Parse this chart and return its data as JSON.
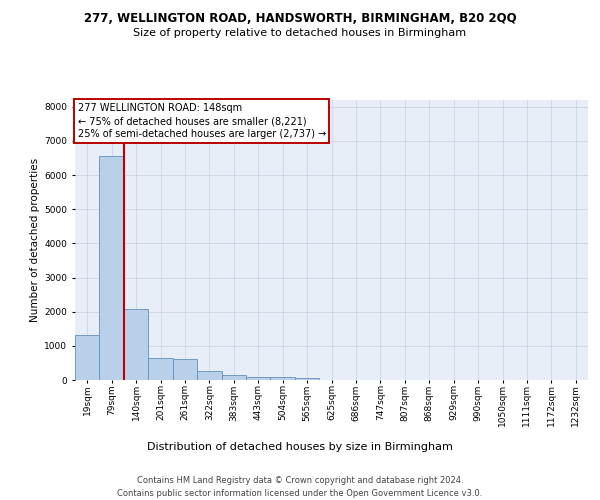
{
  "title": "277, WELLINGTON ROAD, HANDSWORTH, BIRMINGHAM, B20 2QQ",
  "subtitle": "Size of property relative to detached houses in Birmingham",
  "xlabel": "Distribution of detached houses by size in Birmingham",
  "ylabel": "Number of detached properties",
  "footer_line1": "Contains HM Land Registry data © Crown copyright and database right 2024.",
  "footer_line2": "Contains public sector information licensed under the Open Government Licence v3.0.",
  "bin_labels": [
    "19sqm",
    "79sqm",
    "140sqm",
    "201sqm",
    "261sqm",
    "322sqm",
    "383sqm",
    "443sqm",
    "504sqm",
    "565sqm",
    "625sqm",
    "686sqm",
    "747sqm",
    "807sqm",
    "868sqm",
    "929sqm",
    "990sqm",
    "1050sqm",
    "1111sqm",
    "1172sqm",
    "1232sqm"
  ],
  "bar_heights": [
    1310,
    6550,
    2080,
    650,
    620,
    265,
    150,
    100,
    80,
    70,
    0,
    0,
    0,
    0,
    0,
    0,
    0,
    0,
    0,
    0,
    0
  ],
  "bar_color": "#b8d0ea",
  "bar_edge_color": "#6090c0",
  "background_color": "#e8eef8",
  "grid_color": "#c8d0dc",
  "annotation_line1": "277 WELLINGTON ROAD: 148sqm",
  "annotation_line2": "← 75% of detached houses are smaller (8,221)",
  "annotation_line3": "25% of semi-detached houses are larger (2,737) →",
  "annotation_box_edgecolor": "#bb0000",
  "vline_color": "#bb0000",
  "vline_position": 1.5,
  "ylim": [
    0,
    8200
  ],
  "yticks": [
    0,
    1000,
    2000,
    3000,
    4000,
    5000,
    6000,
    7000,
    8000
  ],
  "title_fontsize": 8.5,
  "subtitle_fontsize": 8.0,
  "xlabel_fontsize": 8.0,
  "ylabel_fontsize": 7.5,
  "tick_fontsize": 6.5,
  "annotation_fontsize": 7.0,
  "footer_fontsize": 6.0
}
